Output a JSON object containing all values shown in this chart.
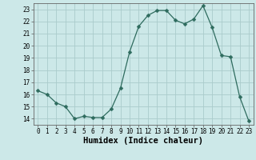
{
  "x": [
    0,
    1,
    2,
    3,
    4,
    5,
    6,
    7,
    8,
    9,
    10,
    11,
    12,
    13,
    14,
    15,
    16,
    17,
    18,
    19,
    20,
    21,
    22,
    23
  ],
  "y": [
    16.3,
    16.0,
    15.3,
    15.0,
    14.0,
    14.2,
    14.1,
    14.1,
    14.8,
    16.5,
    19.5,
    21.6,
    22.5,
    22.9,
    22.9,
    22.1,
    21.8,
    22.2,
    23.3,
    21.5,
    19.2,
    19.1,
    15.8,
    13.8
  ],
  "line_color": "#2e6b5e",
  "marker": "D",
  "marker_size": 2.5,
  "bg_color": "#cce8e8",
  "grid_color": "#aacccc",
  "xlabel": "Humidex (Indice chaleur)",
  "xlim": [
    -0.5,
    23.5
  ],
  "ylim": [
    13.5,
    23.5
  ],
  "yticks": [
    14,
    15,
    16,
    17,
    18,
    19,
    20,
    21,
    22,
    23
  ],
  "xticks": [
    0,
    1,
    2,
    3,
    4,
    5,
    6,
    7,
    8,
    9,
    10,
    11,
    12,
    13,
    14,
    15,
    16,
    17,
    18,
    19,
    20,
    21,
    22,
    23
  ],
  "tick_fontsize": 5.5,
  "xlabel_fontsize": 7.5
}
